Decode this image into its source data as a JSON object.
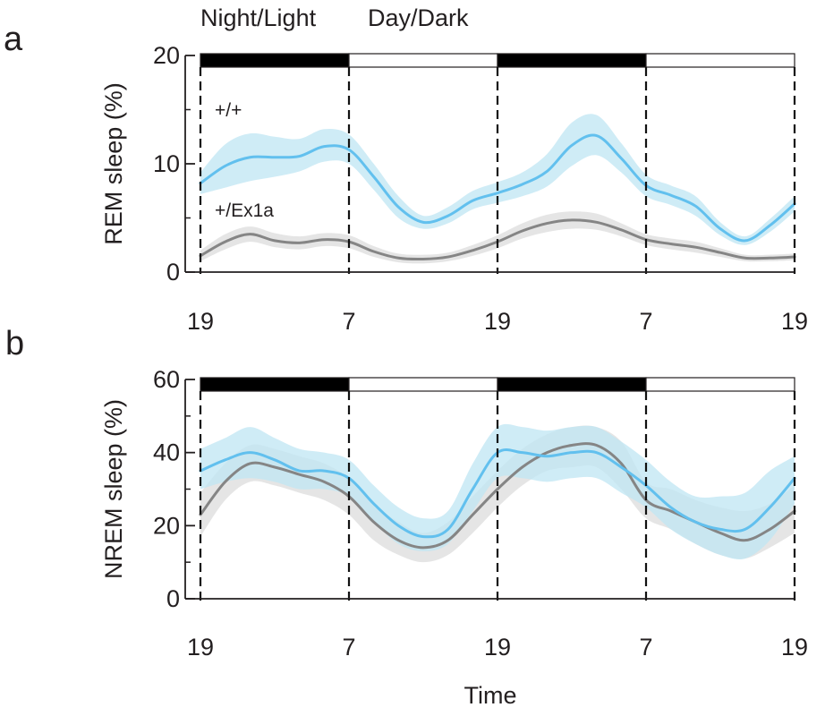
{
  "figure": {
    "top_labels": [
      "Night/Light",
      "Day/Dark"
    ],
    "xlabel": "Time"
  },
  "colors": {
    "wildtype_line": "#62c0ee",
    "wildtype_band": "#bfe6f3",
    "mutant_line": "#858585",
    "mutant_band": "#dadada",
    "axis": "#231f20",
    "dark_phase": "#000000",
    "light_phase": "#ffffff"
  },
  "chart_data": [
    {
      "type": "line",
      "panel": "a",
      "ylabel": "REM sleep (%)",
      "ylim": [
        0,
        20
      ],
      "yticks": [
        0,
        10,
        20
      ],
      "xlim": [
        0,
        48
      ],
      "xticks": [
        0,
        12,
        24,
        36,
        48
      ],
      "xtick_labels": [
        "19",
        "7",
        "19",
        "7",
        "19"
      ],
      "phases": [
        {
          "start": 0,
          "end": 12,
          "state": "dark"
        },
        {
          "start": 12,
          "end": 24,
          "state": "light"
        },
        {
          "start": 24,
          "end": 36,
          "state": "dark"
        },
        {
          "start": 36,
          "end": 48,
          "state": "light"
        }
      ],
      "x": [
        0,
        2,
        4,
        6,
        8,
        10,
        12,
        14,
        16,
        18,
        20,
        22,
        24,
        26,
        28,
        30,
        32,
        34,
        36,
        38,
        40,
        42,
        44,
        46,
        48
      ],
      "series": [
        {
          "name": "+/+",
          "values": [
            8.2,
            9.8,
            10.6,
            10.6,
            10.7,
            11.6,
            11.3,
            8.8,
            6.0,
            4.6,
            5.2,
            6.6,
            7.3,
            8.1,
            9.3,
            11.7,
            12.6,
            10.5,
            8.0,
            7.1,
            6.1,
            4.0,
            2.9,
            4.3,
            6.3
          ],
          "lower": [
            7.2,
            7.8,
            8.4,
            8.8,
            9.3,
            10.2,
            10.0,
            7.6,
            5.0,
            4.0,
            4.5,
            5.8,
            6.4,
            7.0,
            7.9,
            9.8,
            10.8,
            9.2,
            7.0,
            6.2,
            5.2,
            3.4,
            2.5,
            3.7,
            5.6
          ],
          "upper": [
            9.2,
            11.8,
            12.8,
            12.5,
            12.3,
            13.2,
            12.7,
            10.0,
            7.0,
            5.2,
            6.0,
            7.5,
            8.3,
            9.2,
            10.9,
            13.8,
            14.5,
            11.9,
            9.0,
            8.0,
            7.0,
            4.6,
            3.3,
            4.9,
            7.0
          ]
        },
        {
          "name": "+/Ex1a",
          "values": [
            1.5,
            2.8,
            3.5,
            2.9,
            2.7,
            3.0,
            2.8,
            1.9,
            1.3,
            1.2,
            1.4,
            2.0,
            2.8,
            3.8,
            4.5,
            4.8,
            4.6,
            3.9,
            3.0,
            2.6,
            2.3,
            1.8,
            1.3,
            1.3,
            1.4
          ],
          "lower": [
            1.0,
            2.1,
            2.8,
            2.3,
            2.1,
            2.4,
            2.2,
            1.4,
            0.9,
            0.8,
            1.0,
            1.5,
            2.2,
            3.1,
            3.7,
            4.0,
            3.9,
            3.3,
            2.5,
            2.1,
            1.8,
            1.4,
            1.0,
            1.0,
            1.1
          ],
          "upper": [
            2.0,
            3.5,
            4.2,
            3.6,
            3.3,
            3.6,
            3.4,
            2.4,
            1.7,
            1.6,
            1.8,
            2.5,
            3.4,
            4.5,
            5.3,
            5.6,
            5.4,
            4.5,
            3.5,
            3.1,
            2.8,
            2.2,
            1.6,
            1.6,
            1.7
          ]
        }
      ]
    },
    {
      "type": "line",
      "panel": "b",
      "ylabel": "NREM sleep (%)",
      "ylim": [
        0,
        60
      ],
      "yticks": [
        0,
        20,
        40,
        60
      ],
      "xlim": [
        0,
        48
      ],
      "xticks": [
        0,
        12,
        24,
        36,
        48
      ],
      "xtick_labels": [
        "19",
        "7",
        "19",
        "7",
        "19"
      ],
      "phases": [
        {
          "start": 0,
          "end": 12,
          "state": "dark"
        },
        {
          "start": 12,
          "end": 24,
          "state": "light"
        },
        {
          "start": 24,
          "end": 36,
          "state": "dark"
        },
        {
          "start": 36,
          "end": 48,
          "state": "light"
        }
      ],
      "x": [
        0,
        2,
        4,
        6,
        8,
        10,
        12,
        14,
        16,
        18,
        20,
        22,
        24,
        26,
        28,
        30,
        32,
        34,
        36,
        38,
        40,
        42,
        44,
        46,
        48
      ],
      "series": [
        {
          "name": "+/+",
          "values": [
            35,
            38,
            40,
            38,
            35,
            35,
            33,
            26,
            20,
            17,
            19,
            30,
            40,
            40,
            39,
            40,
            40,
            36,
            31,
            25,
            21,
            19,
            19,
            25,
            33
          ],
          "lower": [
            30,
            32,
            33,
            32,
            30,
            30,
            28,
            21,
            15,
            13,
            15,
            24,
            33,
            33,
            32,
            33,
            33,
            29,
            25,
            19,
            15,
            12,
            11,
            16,
            26
          ],
          "upper": [
            41,
            44,
            47,
            44,
            41,
            40,
            38,
            31,
            25,
            22,
            24,
            37,
            47,
            47,
            46,
            47,
            47,
            43,
            38,
            32,
            28,
            28,
            29,
            35,
            39
          ]
        },
        {
          "name": "+/Ex1a",
          "values": [
            23,
            32,
            37,
            36,
            34,
            32,
            28,
            21,
            16,
            14,
            16,
            23,
            30,
            36,
            40,
            42,
            42,
            37,
            27,
            24,
            21,
            18,
            16,
            19,
            24
          ],
          "lower": [
            17,
            27,
            32,
            31,
            29,
            27,
            23,
            16,
            12,
            10,
            12,
            18,
            25,
            31,
            35,
            36,
            36,
            30,
            22,
            19,
            15,
            12,
            11,
            14,
            18
          ],
          "upper": [
            29,
            37,
            42,
            41,
            39,
            37,
            33,
            26,
            21,
            18,
            21,
            28,
            35,
            41,
            45,
            47,
            47,
            43,
            32,
            30,
            27,
            25,
            24,
            26,
            31
          ]
        }
      ]
    }
  ]
}
